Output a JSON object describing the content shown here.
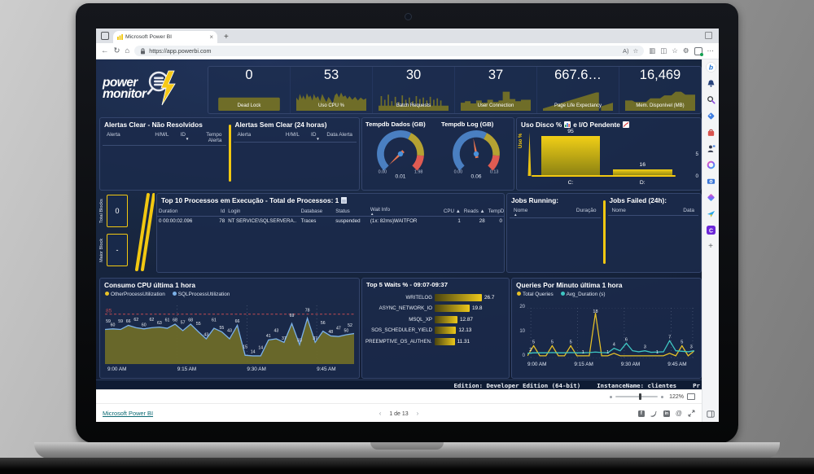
{
  "browser": {
    "tab_title": "Microsoft Power BI",
    "tab_close": "×",
    "new_tab": "+",
    "url": "https://app.powerbi.com",
    "nav_back": "←",
    "nav_refresh": "↻",
    "nav_home": "⌂",
    "read_aloud": "A)",
    "favorite_star": "☆",
    "collections": "▥",
    "split_screen": "◫",
    "favorites_bar": "☆",
    "settings_gear": "⚙",
    "more_menu": "⋯"
  },
  "edge_sidebar": {
    "add_glyph": "+"
  },
  "dashboard": {
    "logo": {
      "line1": "power",
      "line2": "monitor"
    },
    "kpis": [
      {
        "value": "0",
        "label": "Dead Lock"
      },
      {
        "value": "53",
        "label": "Uso CPU %"
      },
      {
        "value": "30",
        "label": "Batch Requests"
      },
      {
        "value": "37",
        "label": "User Connection"
      },
      {
        "value": "667.6…",
        "label": "Page Life Expectancy"
      },
      {
        "value": "16,469",
        "label": "Mem. Disponível (MB)"
      }
    ],
    "alerts_clear": {
      "title": "Alertas Clear - Não Resolvidos",
      "columns": [
        "Alerta",
        "H/M/L",
        "ID",
        "Tempo Alerta"
      ],
      "sort": "▼"
    },
    "alerts_sem": {
      "title": "Alertas Sem Clear (24 horas)",
      "columns": [
        "Alerta",
        "H/M/L",
        "ID",
        "Data Alerta"
      ],
      "sort": "▼"
    },
    "gauges": [
      {
        "title": "Tempdb Dados (GB)",
        "display": "0.01",
        "min": "0.00",
        "max": "1.98",
        "value": 0.01,
        "max_num": 1.98
      },
      {
        "title": "Tempdb Log (GB)",
        "display": "0.06",
        "min": "0.00",
        "max": "0.13",
        "value": 0.06,
        "max_num": 0.13
      }
    ],
    "blocks": {
      "total_label": "Total Blocks",
      "total_value": "0",
      "maior_label": "Maior Block",
      "maior_value": "-"
    },
    "process_table": {
      "title": "Top 10 Processos em Execução - Total de Processos: 1",
      "columns": [
        "Duration",
        "Id",
        "Login",
        "Database",
        "Status",
        "Wait Info",
        "CPU ▲",
        "Reads ▲",
        "TempDB ▲"
      ],
      "wait_sort": "▲",
      "rows": [
        [
          "0 00:00:02.096",
          "78",
          "NT SERVICE\\SQLSERVERA..",
          "Traces",
          "suspended",
          "(1x: 82ms)WAITFOR",
          "1",
          "28",
          "0"
        ]
      ]
    },
    "jobs_running": {
      "title": "Jobs Running:",
      "columns": [
        "Nome",
        "Duração"
      ],
      "sort": "▲"
    },
    "jobs_failed": {
      "title": "Jobs Failed (24h):",
      "columns": [
        "Nome",
        "Data"
      ]
    },
    "status_bar": {
      "edition": "Edition: Developer Edition (64-bit)",
      "instance": "InstanceName: clientes",
      "truncated": "Pr"
    }
  },
  "chart_data": [
    {
      "id": "cpu",
      "type": "area",
      "title": "Consumo CPU última 1 hora",
      "series": [
        {
          "name": "OtherProcessUtilization",
          "color": "#e8c227",
          "values": []
        },
        {
          "name": "SQLProcessUtilization",
          "color": "#7cb1e8",
          "values": [
            59,
            60,
            59,
            66,
            62,
            60,
            62,
            63,
            61,
            68,
            57,
            68,
            55,
            43,
            61,
            55,
            43,
            66,
            15,
            14,
            14,
            41,
            43,
            37,
            69,
            33,
            78,
            37,
            56,
            48,
            47,
            50,
            52
          ]
        }
      ],
      "x_ticks": [
        "9:00 AM",
        "9:15 AM",
        "9:30 AM",
        "9:45 AM"
      ],
      "ylim": [
        0,
        100
      ],
      "threshold": {
        "value": 85,
        "label": "85",
        "color": "#c24a52"
      }
    },
    {
      "id": "waits",
      "type": "bar",
      "title": "Top 5 Waits % - 09:07-09:37",
      "categories": [
        "WRITELOG",
        "ASYNC_NETWORK_IO",
        "MSQL_XP",
        "SOS_SCHEDULER_YIELD",
        "PREEMPTIVE_OS_AUTHEN..."
      ],
      "values": [
        26.7,
        19.8,
        12.87,
        12.13,
        11.31
      ],
      "values_display": [
        "26.7",
        "19.8",
        "12.87",
        "12.13",
        "11.31"
      ]
    },
    {
      "id": "queries",
      "type": "line",
      "title": "Queries Por Minuto última 1 hora",
      "series": [
        {
          "name": "Total Queries",
          "color": "#e8c227",
          "values": [
            1,
            5,
            1,
            1,
            5,
            1,
            1,
            5,
            1,
            1,
            1,
            18,
            1,
            1,
            2,
            1,
            1,
            1,
            1,
            1,
            1,
            1,
            1,
            2,
            1,
            5,
            1,
            3
          ]
        },
        {
          "name": "Avg_Duration (s)",
          "color": "#3ec6c2",
          "values": [
            2,
            2.2,
            2.2,
            2.2,
            2.3,
            2.2,
            2.2,
            2.3,
            2.2,
            2.2,
            2.3,
            2.5,
            2.3,
            2.2,
            4,
            3,
            6,
            3,
            2.6,
            3,
            2.4,
            2.5,
            2.6,
            7,
            3,
            2.8,
            2.6,
            3
          ]
        }
      ],
      "labels": [
        {
          "i": 0,
          "v": "2",
          "s": 1
        },
        {
          "i": 1,
          "v": "5",
          "s": 0
        },
        {
          "i": 4,
          "v": "5",
          "s": 0
        },
        {
          "i": 7,
          "v": "5",
          "s": 0
        },
        {
          "i": 9,
          "v": "1",
          "s": 0
        },
        {
          "i": 11,
          "v": "18",
          "s": 0
        },
        {
          "i": 13,
          "v": "1",
          "s": 0
        },
        {
          "i": 14,
          "v": "4",
          "s": 1
        },
        {
          "i": 16,
          "v": "6",
          "s": 1
        },
        {
          "i": 19,
          "v": "3",
          "s": 1
        },
        {
          "i": 21,
          "v": "1",
          "s": 0
        },
        {
          "i": 23,
          "v": "7",
          "s": 1
        },
        {
          "i": 25,
          "v": "5",
          "s": 0
        },
        {
          "i": 27,
          "v": "3",
          "s": 1
        }
      ],
      "x_ticks": [
        "9:00 AM",
        "9:15 AM",
        "9:30 AM",
        "9:45 AM"
      ],
      "y_ticks": [
        "0",
        "10",
        "20"
      ],
      "ylim": [
        0,
        20
      ]
    },
    {
      "id": "disco",
      "type": "bar",
      "title_left": "Uso Disco %",
      "title_right": "e I/O Pendente",
      "categories": [
        "C:",
        "D:"
      ],
      "values": [
        95,
        16
      ],
      "value_labels": [
        "95",
        "16"
      ],
      "ylabel": "Uso %",
      "secondary_ticks": [
        "5",
        "0"
      ]
    }
  ],
  "footer": {
    "link": "Microsoft Power BI",
    "prev": "‹",
    "page": "1 de 13",
    "next": "›",
    "zoom": "122%"
  }
}
